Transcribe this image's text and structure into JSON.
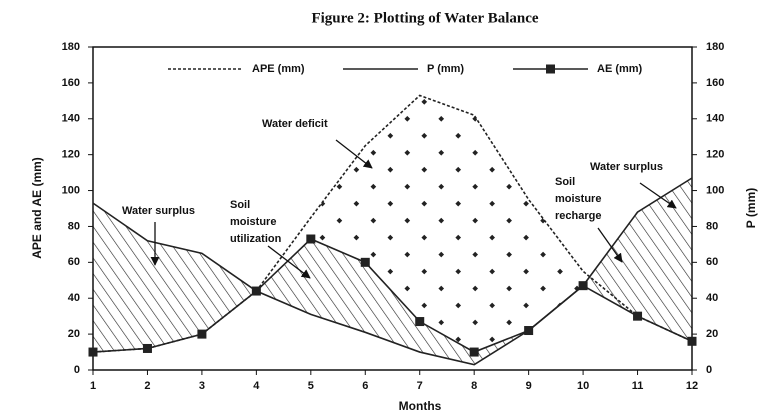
{
  "chart_data": {
    "type": "line",
    "title": "Figure 2: Plotting of Water Balance",
    "x_label": "Months",
    "y_label": "APE and AE (mm)",
    "y2_label": "P (mm)",
    "x": [
      1,
      2,
      3,
      4,
      5,
      6,
      7,
      8,
      9,
      10,
      11,
      12
    ],
    "xlim": [
      1,
      12
    ],
    "xticks": [
      1,
      2,
      3,
      4,
      5,
      6,
      7,
      8,
      9,
      10,
      11,
      12
    ],
    "ylim": [
      0,
      180
    ],
    "yticks": [
      0,
      20,
      40,
      60,
      80,
      100,
      120,
      140,
      160,
      180
    ],
    "y2lim": [
      0,
      180
    ],
    "y2ticks": [
      0,
      20,
      40,
      60,
      80,
      100,
      120,
      140,
      160,
      180
    ],
    "series": [
      {
        "name": "APE (mm)",
        "color": "#222222",
        "line_style": "dashed",
        "values": [
          10,
          12,
          20,
          44,
          85,
          125,
          153,
          142,
          95,
          55,
          30,
          16
        ]
      },
      {
        "name": "P (mm)",
        "color": "#222222",
        "line_style": "solid",
        "axis": "y2",
        "values": [
          93,
          72,
          65,
          44,
          31,
          21,
          10,
          3,
          22,
          47,
          88,
          107
        ]
      },
      {
        "name": "AE (mm)",
        "color": "#222222",
        "line_style": "solid",
        "marker": "square",
        "values": [
          10,
          12,
          20,
          44,
          73,
          60,
          27,
          10,
          22,
          47,
          30,
          16
        ]
      }
    ],
    "annotations": [
      {
        "lines": [
          "Water surplus"
        ]
      },
      {
        "lines": [
          "Soil",
          "moisture",
          "utilization"
        ]
      },
      {
        "lines": [
          "Water deficit"
        ]
      },
      {
        "lines": [
          "Soil",
          "moisture",
          "recharge"
        ]
      },
      {
        "lines": [
          "Water surplus"
        ]
      }
    ]
  }
}
